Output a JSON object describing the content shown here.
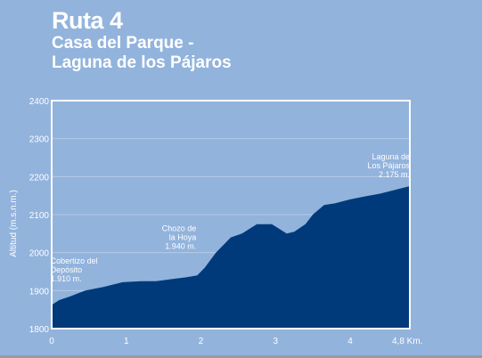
{
  "header": {
    "title": "Ruta 4",
    "subtitle_line1": "Casa del Parque -",
    "subtitle_line2": "Laguna de los Pájaros"
  },
  "colors": {
    "background": "#92b3dc",
    "area_fill": "#003a7a",
    "text": "#ffffff"
  },
  "chart_data": {
    "type": "area",
    "title": "Ruta 4",
    "subtitle": "Casa del Parque - Laguna de los Pájaros",
    "xlabel": "",
    "ylabel": "Altitud (m.s.n.m.)",
    "xlim": [
      0,
      4.8
    ],
    "ylim": [
      1800,
      2400
    ],
    "x_ticks": [
      0,
      1,
      2,
      3,
      4,
      4.8
    ],
    "x_tick_labels": [
      "0",
      "1",
      "2",
      "3",
      "4",
      "4,8 Km."
    ],
    "y_ticks": [
      1800,
      1900,
      2000,
      2100,
      2200,
      2300,
      2400
    ],
    "y_tick_labels": [
      "1800",
      "1900",
      "2000",
      "2100",
      "2200",
      "2300",
      "2400"
    ],
    "grid": true,
    "legend": "none",
    "series": [
      {
        "x": [
          0,
          0.1,
          0.25,
          0.45,
          0.7,
          0.95,
          1.2,
          1.4,
          1.6,
          1.8,
          1.95,
          2.05,
          2.2,
          2.4,
          2.55,
          2.75,
          2.95,
          3.15,
          3.25,
          3.4,
          3.5,
          3.65,
          3.8,
          4.0,
          4.2,
          4.4,
          4.6,
          4.8
        ],
        "y": [
          1862,
          1875,
          1885,
          1900,
          1910,
          1922,
          1925,
          1925,
          1930,
          1935,
          1940,
          1960,
          2000,
          2040,
          2050,
          2075,
          2075,
          2050,
          2055,
          2075,
          2100,
          2125,
          2130,
          2140,
          2148,
          2155,
          2165,
          2175
        ]
      }
    ],
    "annotations": [
      {
        "id": "cobertizo",
        "lines": [
          "Cobertizo del",
          "Depósito",
          "1.910 m."
        ],
        "x": 0.7,
        "y": 1910,
        "align": "start"
      },
      {
        "id": "chozo",
        "lines": [
          "Chozo de",
          "la Hoya",
          "1.940 m."
        ],
        "x": 1.95,
        "y": 1940,
        "align": "end"
      },
      {
        "id": "laguna",
        "lines": [
          "Laguna de",
          "Los Pájaros",
          "2.175 m."
        ],
        "x": 4.8,
        "y": 2175,
        "align": "end"
      }
    ]
  }
}
